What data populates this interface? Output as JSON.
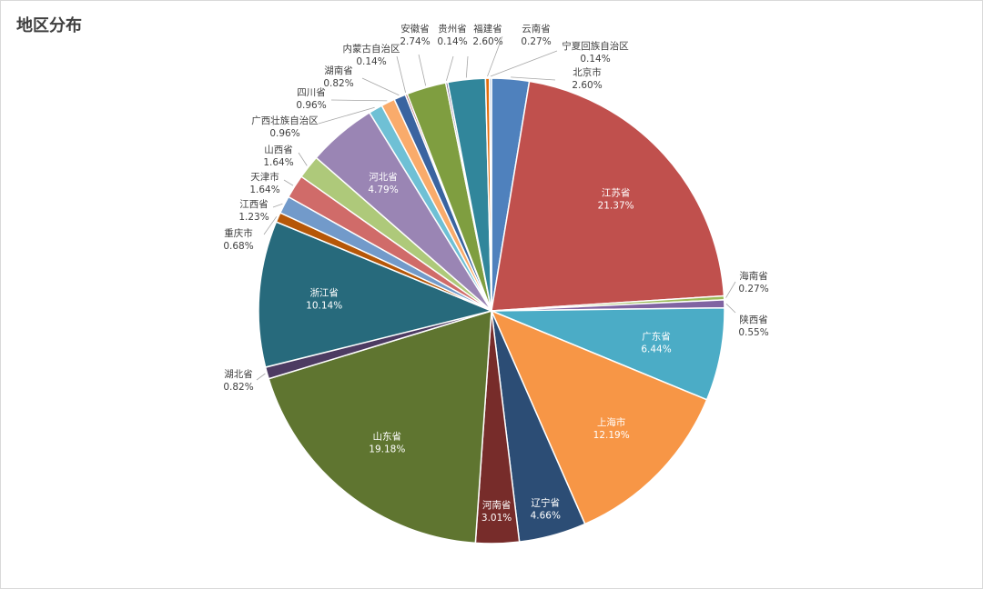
{
  "chart_data": {
    "type": "pie",
    "title": "地区分布",
    "start_angle_deg": 0,
    "direction": "clockwise",
    "slices": [
      {
        "name": "北京市",
        "value": 2.6,
        "label": "2.60%",
        "color": "#4f81bd",
        "label_pos": "outside"
      },
      {
        "name": "江苏省",
        "value": 21.37,
        "label": "21.37%",
        "color": "#c0504d",
        "label_pos": "inside"
      },
      {
        "name": "海南省",
        "value": 0.27,
        "label": "0.27%",
        "color": "#9bbb59",
        "label_pos": "outside"
      },
      {
        "name": "陕西省",
        "value": 0.55,
        "label": "0.55%",
        "color": "#8064a2",
        "label_pos": "outside"
      },
      {
        "name": "广东省",
        "value": 6.44,
        "label": "6.44%",
        "color": "#4bacc6",
        "label_pos": "inside"
      },
      {
        "name": "上海市",
        "value": 12.19,
        "label": "12.19%",
        "color": "#f79646",
        "label_pos": "inside"
      },
      {
        "name": "辽宁省",
        "value": 4.66,
        "label": "4.66%",
        "color": "#2c4d75",
        "label_pos": "inside"
      },
      {
        "name": "河南省",
        "value": 3.01,
        "label": "3.01%",
        "color": "#772c2a",
        "label_pos": "inside"
      },
      {
        "name": "山东省",
        "value": 19.18,
        "label": "19.18%",
        "color": "#5f7530",
        "label_pos": "inside"
      },
      {
        "name": "湖北省",
        "value": 0.82,
        "label": "0.82%",
        "color": "#4d3b62",
        "label_pos": "outside"
      },
      {
        "name": "浙江省",
        "value": 10.14,
        "label": "10.14%",
        "color": "#276a7c",
        "label_pos": "inside"
      },
      {
        "name": "重庆市",
        "value": 0.68,
        "label": "0.68%",
        "color": "#b65708",
        "label_pos": "outside"
      },
      {
        "name": "江西省",
        "value": 1.23,
        "label": "1.23%",
        "color": "#729aca",
        "label_pos": "outside"
      },
      {
        "name": "天津市",
        "value": 1.64,
        "label": "1.64%",
        "color": "#d06b69",
        "label_pos": "outside"
      },
      {
        "name": "山西省",
        "value": 1.64,
        "label": "1.64%",
        "color": "#aec97a",
        "label_pos": "outside"
      },
      {
        "name": "河北省",
        "value": 4.79,
        "label": "4.79%",
        "color": "#9a85b4",
        "label_pos": "inside"
      },
      {
        "name": "广西壮族自治区",
        "value": 0.96,
        "label": "0.96%",
        "color": "#6fc0d5",
        "label_pos": "outside"
      },
      {
        "name": "四川省",
        "value": 0.96,
        "label": "0.96%",
        "color": "#f9ab6b",
        "label_pos": "outside"
      },
      {
        "name": "湖南省",
        "value": 0.82,
        "label": "0.82%",
        "color": "#3a64a0",
        "label_pos": "outside"
      },
      {
        "name": "内蒙古自治区",
        "value": 0.14,
        "label": "0.14%",
        "color": "#a34e4c",
        "label_pos": "outside"
      },
      {
        "name": "安徽省",
        "value": 2.74,
        "label": "2.74%",
        "color": "#7f9e40",
        "label_pos": "outside"
      },
      {
        "name": "贵州省",
        "value": 0.14,
        "label": "0.14%",
        "color": "#5f4b7c",
        "label_pos": "outside"
      },
      {
        "name": "福建省",
        "value": 2.6,
        "label": "2.60%",
        "color": "#31869b",
        "label_pos": "outside"
      },
      {
        "name": "云南省",
        "value": 0.27,
        "label": "0.27%",
        "color": "#e46c0a",
        "label_pos": "outside"
      },
      {
        "name": "宁夏回族自治区",
        "value": 0.14,
        "label": "0.14%",
        "color": "#95b3d7",
        "label_pos": "outside"
      }
    ]
  }
}
